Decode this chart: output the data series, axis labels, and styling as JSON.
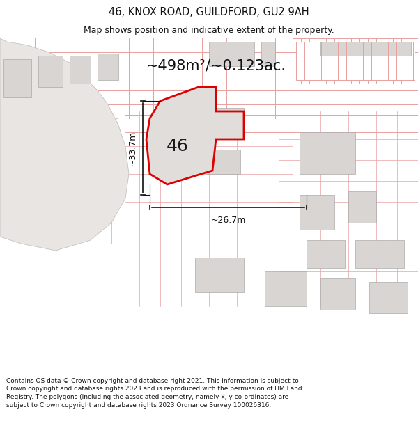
{
  "title": "46, KNOX ROAD, GUILDFORD, GU2 9AH",
  "subtitle": "Map shows position and indicative extent of the property.",
  "area_text": "~498m²/~0.123ac.",
  "dim_width": "~26.7m",
  "dim_height": "~33.7m",
  "property_number": "46",
  "footer": "Contains OS data © Crown copyright and database right 2021. This information is subject to Crown copyright and database rights 2023 and is reproduced with the permission of HM Land Registry. The polygons (including the associated geometry, namely x, y co-ordinates) are subject to Crown copyright and database rights 2023 Ordnance Survey 100026316.",
  "bg_color": "#ffffff",
  "map_bg": "#ffffff",
  "building_fill": "#d8d5d2",
  "building_edge": "#aaaaaa",
  "road_fill": "#e8e5e2",
  "property_fill": "#e0ddda",
  "property_edge": "#dd0000",
  "cadastral_color": "#e8a0a0",
  "dim_color": "#111111",
  "title_color": "#111111",
  "footer_color": "#111111"
}
